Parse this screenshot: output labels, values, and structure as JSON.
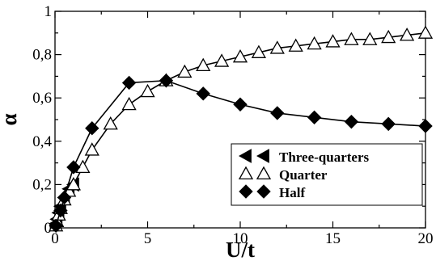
{
  "chart_data": {
    "type": "line",
    "xlabel": "U/t",
    "ylabel": "α",
    "xlim": [
      0,
      20
    ],
    "ylim": [
      0,
      1
    ],
    "x_ticks": [
      {
        "value": 0,
        "label": "0"
      },
      {
        "value": 5,
        "label": "5"
      },
      {
        "value": 10,
        "label": "10"
      },
      {
        "value": 15,
        "label": "15"
      },
      {
        "value": 20,
        "label": "20"
      }
    ],
    "y_ticks": [
      {
        "value": 0,
        "label": "0"
      },
      {
        "value": 0.2,
        "label": "0,2"
      },
      {
        "value": 0.4,
        "label": "0,4"
      },
      {
        "value": 0.6,
        "label": "0,6"
      },
      {
        "value": 0.8,
        "label": "0,8"
      },
      {
        "value": 1,
        "label": "1"
      }
    ],
    "grid": false,
    "legend_position": "bottom-right",
    "series": [
      {
        "name": "Three-quarters",
        "marker": "left-triangle",
        "x": [
          0.05,
          0.1,
          0.2,
          0.3,
          0.5,
          0.75,
          1.0
        ],
        "y": [
          0.02,
          0.04,
          0.07,
          0.1,
          0.14,
          0.18,
          0.2
        ]
      },
      {
        "name": "Quarter",
        "marker": "open-triangle",
        "x": [
          0.05,
          0.1,
          0.2,
          0.3,
          0.5,
          0.75,
          1.0,
          1.5,
          2,
          3,
          4,
          5,
          6,
          7,
          8,
          9,
          10,
          11,
          12,
          13,
          14,
          15,
          16,
          17,
          18,
          19,
          20
        ],
        "y": [
          0.01,
          0.03,
          0.06,
          0.09,
          0.13,
          0.17,
          0.2,
          0.28,
          0.36,
          0.48,
          0.57,
          0.63,
          0.68,
          0.72,
          0.75,
          0.77,
          0.79,
          0.81,
          0.83,
          0.84,
          0.85,
          0.86,
          0.87,
          0.87,
          0.88,
          0.89,
          0.9
        ]
      },
      {
        "name": "Half",
        "marker": "diamond",
        "x": [
          0.05,
          0.3,
          0.5,
          1,
          2,
          4,
          6,
          8,
          10,
          12,
          14,
          16,
          18,
          20
        ],
        "y": [
          0.01,
          0.08,
          0.14,
          0.28,
          0.46,
          0.67,
          0.68,
          0.62,
          0.57,
          0.53,
          0.51,
          0.49,
          0.48,
          0.47
        ]
      }
    ],
    "colors": {
      "line": "#000000",
      "fill": "#000000",
      "open_fill": "#ffffff"
    }
  }
}
